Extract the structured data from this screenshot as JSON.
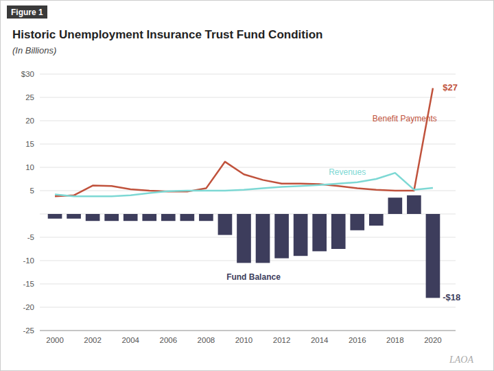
{
  "chart_data": {
    "type": "bar",
    "figure_label": "Figure 1",
    "title": "Historic Unemployment Insurance Trust Fund Condition",
    "subtitle": "(In Billions)",
    "watermark": "LAOA",
    "x": [
      2000,
      2001,
      2002,
      2003,
      2004,
      2005,
      2006,
      2007,
      2008,
      2009,
      2010,
      2011,
      2012,
      2013,
      2014,
      2015,
      2016,
      2017,
      2018,
      2019,
      2020
    ],
    "series": [
      {
        "name": "Fund Balance",
        "type": "bar",
        "color": "#3d3d5c",
        "values": [
          -1.0,
          -1.0,
          -1.5,
          -1.5,
          -1.5,
          -1.5,
          -1.5,
          -1.5,
          -1.5,
          -4.5,
          -10.5,
          -10.5,
          -9.5,
          -9.0,
          -8.0,
          -7.5,
          -3.5,
          -2.5,
          3.5,
          4.0,
          -18.0
        ]
      },
      {
        "name": "Benefit Payments",
        "type": "line",
        "color": "#c0523c",
        "values": [
          3.8,
          4.0,
          6.1,
          6.0,
          5.3,
          5.0,
          4.8,
          4.8,
          5.5,
          11.2,
          8.5,
          7.3,
          6.5,
          6.5,
          6.4,
          6.0,
          5.5,
          5.2,
          5.0,
          5.0,
          27.0
        ]
      },
      {
        "name": "Revenues",
        "type": "line",
        "color": "#7dd8d4",
        "values": [
          4.2,
          3.8,
          3.8,
          3.8,
          4.0,
          4.5,
          4.9,
          5.0,
          5.0,
          5.0,
          5.2,
          5.5,
          5.8,
          6.0,
          6.2,
          6.5,
          6.8,
          7.5,
          8.8,
          5.2,
          5.6
        ]
      }
    ],
    "annotations": [
      {
        "text": "$27",
        "x": 2020,
        "y": 27,
        "color": "#c0523c"
      },
      {
        "text": "-$18",
        "x": 2020,
        "y": -18,
        "color": "#3d3d5c"
      }
    ],
    "xlim": [
      1999.2,
      2021.2
    ],
    "xticks": [
      2000,
      2002,
      2004,
      2006,
      2008,
      2010,
      2012,
      2014,
      2016,
      2018,
      2020
    ],
    "ylim": [
      -25,
      30
    ],
    "yticks": [
      -25,
      -20,
      -15,
      -10,
      -5,
      {
        "value": 0,
        "label": null
      },
      5,
      10,
      15,
      20,
      25,
      {
        "value": 30,
        "label": "$30"
      }
    ],
    "grid": true
  }
}
